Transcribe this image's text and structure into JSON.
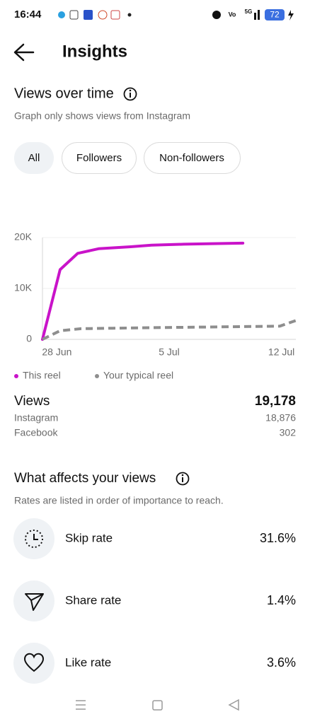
{
  "status_bar": {
    "time": "16:44",
    "network": "5G",
    "battery": "72"
  },
  "header": {
    "title": "Insights"
  },
  "views_section": {
    "title": "Views over time",
    "subtitle": "Graph only shows views from Instagram",
    "filters": [
      "All",
      "Followers",
      "Non-followers"
    ]
  },
  "chart_data": {
    "type": "line",
    "xlim": [
      -0.9,
      14.9
    ],
    "xticks": [
      {
        "value": 0,
        "label": "28 Jun"
      },
      {
        "value": 7,
        "label": "5 Jul"
      },
      {
        "value": 14,
        "label": "12 Jul"
      }
    ],
    "ylim": [
      0,
      20000
    ],
    "yticks": [
      0,
      {
        "value": 10000,
        "label": "10K"
      },
      {
        "value": 20000,
        "label": "20K"
      }
    ],
    "grid": true,
    "series": [
      {
        "name": "This reel",
        "color": "#c913c9",
        "dashed": false,
        "x": [
          -0.9,
          0.2,
          1.3,
          2.6,
          4.6,
          5.9,
          7.9,
          9.7,
          11.6
        ],
        "values": [
          0,
          13700,
          16900,
          17800,
          18200,
          18500,
          18700,
          18800,
          18900
        ]
      },
      {
        "name": "Your typical reel",
        "color": "#8e8e8e",
        "dashed": true,
        "x": [
          -0.9,
          0.2,
          1.5,
          3.5,
          6.1,
          8.8,
          11.4,
          13.9,
          14.9
        ],
        "values": [
          0,
          1700,
          2100,
          2200,
          2300,
          2400,
          2500,
          2600,
          3700
        ]
      }
    ]
  },
  "stats": {
    "label": "Views",
    "total": "19,178",
    "rows": [
      [
        "Instagram",
        "18,876"
      ],
      [
        "Facebook",
        "302"
      ]
    ]
  },
  "affects_section": {
    "title": "What affects your views",
    "subtitle": "Rates are listed in order of importance to reach.",
    "metrics": [
      [
        "Skip rate",
        "31.6%"
      ],
      [
        "Share rate",
        "1.4%"
      ],
      [
        "Like rate",
        "3.6%"
      ]
    ]
  }
}
